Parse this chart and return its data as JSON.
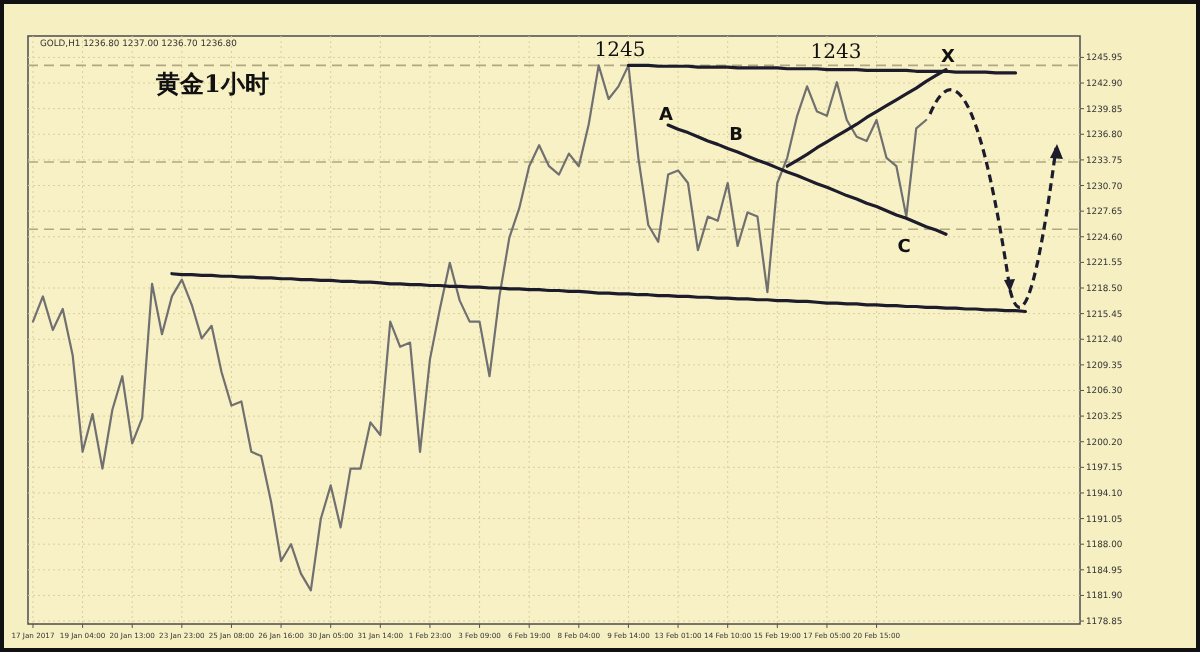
{
  "chart_data": {
    "type": "line",
    "title": "黄金1小时",
    "subtitle": "GOLD,H1 1236.80 1237.00 1236.70 1236.80",
    "categories": [
      "17 Jan 2017",
      null,
      null,
      null,
      null,
      "19 Jan 04:00",
      null,
      null,
      null,
      null,
      "20 Jan 13:00",
      null,
      null,
      null,
      null,
      "23 Jan 23:00",
      null,
      null,
      null,
      null,
      "25 Jan 08:00",
      null,
      null,
      null,
      null,
      "26 Jan 16:00",
      null,
      null,
      null,
      null,
      "30 Jan 05:00",
      null,
      null,
      null,
      null,
      "31 Jan 14:00",
      null,
      null,
      null,
      null,
      "1 Feb 23:00",
      null,
      null,
      null,
      null,
      "3 Feb 09:00",
      null,
      null,
      null,
      null,
      "6 Feb 19:00",
      null,
      null,
      null,
      null,
      "8 Feb 04:00",
      null,
      null,
      null,
      null,
      "9 Feb 14:00",
      null,
      null,
      null,
      null,
      "13 Feb 01:00",
      null,
      null,
      null,
      null,
      "14 Feb 10:00",
      null,
      null,
      null,
      null,
      "15 Feb 19:00",
      null,
      null,
      null,
      null,
      "17 Feb 05:00",
      null,
      null,
      null,
      null,
      "20 Feb 15:00",
      null,
      null,
      null,
      null,
      null,
      null,
      null,
      null,
      null,
      null,
      null,
      null,
      null,
      null,
      null,
      null,
      null,
      null,
      null,
      null
    ],
    "series": [
      {
        "color": "#707070",
        "values": [
          1214.5,
          1217.5,
          1213.5,
          1216,
          1210.5,
          1199,
          1203.5,
          1197,
          1204,
          1208,
          1200,
          1203,
          1219,
          1213,
          1217.5,
          1219.5,
          1216.5,
          1212.5,
          1214,
          1208.5,
          1204.5,
          1205,
          1199,
          1198.5,
          1193,
          1186,
          1188,
          1184.5,
          1182.5,
          1191,
          1195,
          1190,
          1197,
          1197,
          1202.5,
          1201,
          1214.5,
          1211.5,
          1212,
          1199,
          1210,
          1216,
          1221.5,
          1217,
          1214.5,
          1214.5,
          1208,
          1217.5,
          1224.5,
          1228,
          1233,
          1235.5,
          1233,
          1232,
          1234.5,
          1233,
          1238,
          1245,
          1241,
          1242.5,
          1245,
          1234,
          1226,
          1224,
          1232,
          1232.5,
          1231,
          1223,
          1227,
          1226.5,
          1231,
          1223.5,
          1227.5,
          1227,
          1218,
          1231,
          1234,
          1239,
          1242.5,
          1239.5,
          1239,
          1243,
          1238.5,
          1236.5,
          1236,
          1238.5,
          1234,
          1233,
          1227,
          1237.5,
          1238.5,
          null,
          null,
          null,
          null,
          null,
          null,
          null,
          null,
          null,
          null,
          null,
          null,
          null,
          null,
          null
        ]
      },
      {
        "type": "line",
        "color": "#1c1c2c",
        "values": [
          null,
          null,
          null,
          null,
          null,
          null,
          null,
          null,
          null,
          null,
          null,
          null,
          null,
          null,
          1220.2,
          1220.1,
          1220.1,
          1220.0,
          1220.0,
          1219.9,
          1219.9,
          1219.8,
          1219.8,
          1219.7,
          1219.7,
          1219.6,
          1219.6,
          1219.5,
          1219.5,
          1219.4,
          1219.4,
          1219.3,
          1219.3,
          1219.2,
          1219.2,
          1219.1,
          1219.0,
          1219.0,
          1218.9,
          1218.9,
          1218.8,
          1218.8,
          1218.7,
          1218.7,
          1218.6,
          1218.6,
          1218.5,
          1218.5,
          1218.4,
          1218.4,
          1218.3,
          1218.3,
          1218.2,
          1218.2,
          1218.1,
          1218.1,
          1218.0,
          1217.9,
          1217.9,
          1217.8,
          1217.8,
          1217.7,
          1217.7,
          1217.6,
          1217.6,
          1217.5,
          1217.5,
          1217.4,
          1217.4,
          1217.3,
          1217.3,
          1217.2,
          1217.2,
          1217.1,
          1217.1,
          1217.0,
          1217.0,
          1216.9,
          1216.9,
          1216.8,
          1216.7,
          1216.7,
          1216.6,
          1216.6,
          1216.5,
          1216.5,
          1216.4,
          1216.4,
          1216.3,
          1216.3,
          1216.2,
          1216.2,
          1216.1,
          1216.1,
          1216.0,
          1216.0,
          1215.9,
          1215.9,
          1215.8,
          1215.8,
          1215.7,
          null,
          null,
          null,
          null,
          null
        ]
      },
      {
        "type": "line",
        "color": "#1c1c2c",
        "values": [
          null,
          null,
          null,
          null,
          null,
          null,
          null,
          null,
          null,
          null,
          null,
          null,
          null,
          null,
          null,
          null,
          null,
          null,
          null,
          null,
          null,
          null,
          null,
          null,
          null,
          null,
          null,
          null,
          null,
          null,
          null,
          null,
          null,
          null,
          null,
          null,
          null,
          null,
          null,
          null,
          null,
          null,
          null,
          null,
          null,
          null,
          null,
          null,
          null,
          null,
          null,
          null,
          null,
          null,
          null,
          null,
          null,
          null,
          null,
          null,
          1245.0,
          1245.0,
          1245.0,
          1244.9,
          1244.9,
          1244.9,
          1244.9,
          1244.8,
          1244.8,
          1244.8,
          1244.8,
          1244.7,
          1244.7,
          1244.7,
          1244.7,
          1244.7,
          1244.6,
          1244.6,
          1244.6,
          1244.6,
          1244.5,
          1244.5,
          1244.5,
          1244.5,
          1244.4,
          1244.4,
          1244.4,
          1244.4,
          1244.4,
          1244.3,
          1244.3,
          1244.3,
          1244.3,
          1244.2,
          1244.2,
          1244.2,
          1244.2,
          1244.1,
          1244.1,
          1244.1,
          null,
          null,
          null,
          null,
          null,
          null
        ]
      },
      {
        "type": "line",
        "color": "#1c1c2c",
        "values": [
          null,
          null,
          null,
          null,
          null,
          null,
          null,
          null,
          null,
          null,
          null,
          null,
          null,
          null,
          null,
          null,
          null,
          null,
          null,
          null,
          null,
          null,
          null,
          null,
          null,
          null,
          null,
          null,
          null,
          null,
          null,
          null,
          null,
          null,
          null,
          null,
          null,
          null,
          null,
          null,
          null,
          null,
          null,
          null,
          null,
          null,
          null,
          null,
          null,
          null,
          null,
          null,
          null,
          null,
          null,
          null,
          null,
          null,
          null,
          null,
          null,
          null,
          null,
          null,
          1237.9,
          1237.4,
          1237.0,
          1236.5,
          1236.0,
          1235.6,
          1235.1,
          1234.7,
          1234.2,
          1233.7,
          1233.3,
          1232.8,
          1232.3,
          1231.9,
          1231.4,
          1230.9,
          1230.5,
          1230.0,
          1229.5,
          1229.1,
          1228.6,
          1228.2,
          1227.7,
          1227.2,
          1226.8,
          1226.3,
          1225.8,
          1225.4,
          1224.9,
          null,
          null,
          null,
          null,
          null,
          null,
          null,
          null,
          null,
          null,
          null,
          null,
          null
        ]
      },
      {
        "type": "line",
        "color": "#1c1c2c",
        "values": [
          null,
          null,
          null,
          null,
          null,
          null,
          null,
          null,
          null,
          null,
          null,
          null,
          null,
          null,
          null,
          null,
          null,
          null,
          null,
          null,
          null,
          null,
          null,
          null,
          null,
          null,
          null,
          null,
          null,
          null,
          null,
          null,
          null,
          null,
          null,
          null,
          null,
          null,
          null,
          null,
          null,
          null,
          null,
          null,
          null,
          null,
          null,
          null,
          null,
          null,
          null,
          null,
          null,
          null,
          null,
          null,
          null,
          null,
          null,
          null,
          null,
          null,
          null,
          null,
          null,
          null,
          null,
          null,
          null,
          null,
          null,
          null,
          null,
          null,
          null,
          null,
          1233.0,
          1233.7,
          1234.4,
          1235.2,
          1235.9,
          1236.6,
          1237.3,
          1238.0,
          1238.8,
          1239.5,
          1240.2,
          1240.9,
          1241.6,
          1242.3,
          1243.1,
          1243.8,
          1244.5,
          null,
          null,
          null,
          null,
          null,
          null,
          null,
          null,
          null,
          null,
          null,
          null,
          null
        ]
      }
    ],
    "ylim": [
      1178.5,
      1248.5
    ],
    "yticks": [
      {
        "value": 1178.85,
        "label": "1178.85"
      },
      {
        "value": 1181.9,
        "label": "1181.90"
      },
      {
        "value": 1184.95,
        "label": "1184.95"
      },
      {
        "value": 1188,
        "label": "1188.00"
      },
      {
        "value": 1191.05,
        "label": "1191.05"
      },
      {
        "value": 1194.1,
        "label": "1194.10"
      },
      {
        "value": 1197.15,
        "label": "1197.15"
      },
      {
        "value": 1200.2,
        "label": "1200.20"
      },
      {
        "value": 1203.25,
        "label": "1203.25"
      },
      {
        "value": 1206.3,
        "label": "1206.30"
      },
      {
        "value": 1209.35,
        "label": "1209.35"
      },
      {
        "value": 1212.4,
        "label": "1212.40"
      },
      {
        "value": 1215.45,
        "label": "1215.45"
      },
      {
        "value": 1218.5,
        "label": "1218.50"
      },
      {
        "value": 1221.55,
        "label": "1221.55"
      },
      {
        "value": 1224.6,
        "label": "1224.60"
      },
      {
        "value": 1227.65,
        "label": "1227.65"
      },
      {
        "value": 1230.7,
        "label": "1230.70"
      },
      {
        "value": 1233.75,
        "label": "1233.75"
      },
      {
        "value": 1236.8,
        "label": "1236.80"
      },
      {
        "value": 1239.85,
        "label": "1239.85"
      },
      {
        "value": 1242.9,
        "label": "1242.90"
      },
      {
        "value": 1245.95,
        "label": "1245.95"
      }
    ],
    "ref_lines": [
      {
        "axis": "y",
        "value": 1245.0,
        "color": "#b0a880",
        "line_style": "dashed"
      },
      {
        "axis": "y",
        "value": 1233.5,
        "color": "#b0a880",
        "line_style": "dashed"
      },
      {
        "axis": "y",
        "value": 1225.5,
        "color": "#b0a880",
        "line_style": "dashed"
      }
    ],
    "annotations": [
      "1245",
      "1243",
      "A",
      "B",
      "C",
      "X"
    ],
    "grid": true,
    "marker": "none",
    "line_style": "solid"
  }
}
